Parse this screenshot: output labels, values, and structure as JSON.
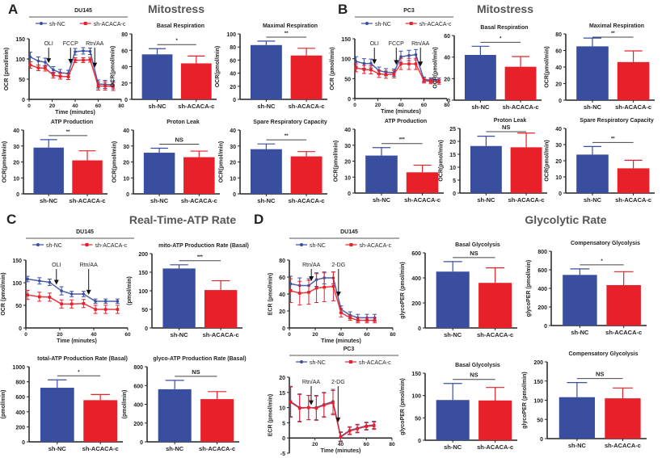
{
  "figure": {
    "panel_letters": [
      "A",
      "B",
      "C",
      "D"
    ],
    "section_titles": [
      "Mitostress",
      "Mitostress",
      "Real-Time-ATP Rate",
      "Glycolytic Rate"
    ]
  },
  "colors": {
    "sh-NC": "#3a4ea0",
    "sh-ACACA-c": "#e8202a",
    "axis": "#222222"
  },
  "chart_data": [
    {
      "type": "line",
      "title": "DU145",
      "xlabel": "Time (minutes)",
      "ylabel": "OCR (pmol/min)",
      "xlim": [
        0,
        80
      ],
      "ylim": [
        0,
        150
      ],
      "xticks": [
        0,
        20,
        40,
        60,
        80
      ],
      "yticks": [
        0,
        50,
        100,
        150
      ],
      "x": [
        1,
        8,
        14,
        21,
        27,
        34,
        40,
        47,
        53,
        60,
        66,
        73
      ],
      "series": [
        {
          "name": "sh-NC",
          "values": [
            105,
            95,
            92,
            73,
            66,
            64,
            118,
            120,
            119,
            38,
            37,
            36
          ],
          "errors": [
            12,
            10,
            10,
            8,
            8,
            8,
            8,
            8,
            8,
            10,
            10,
            10
          ]
        },
        {
          "name": "sh-ACACA-c",
          "values": [
            85,
            78,
            77,
            60,
            57,
            56,
            97,
            97,
            98,
            33,
            33,
            32
          ],
          "errors": [
            8,
            7,
            7,
            7,
            7,
            7,
            6,
            6,
            6,
            10,
            10,
            10
          ]
        }
      ],
      "injections": [
        {
          "label": "OLI",
          "x": 17
        },
        {
          "label": "FCCP",
          "x": 36
        },
        {
          "label": "Rtn/AA",
          "x": 57
        }
      ]
    },
    {
      "type": "bar",
      "title": "Basal Respiration",
      "ylabel": "OCR(pmol/min)",
      "categories": [
        "sh-NC",
        "sh-ACACA-c"
      ],
      "values": [
        55,
        44
      ],
      "errors": [
        7,
        9
      ],
      "ylim": [
        0,
        80
      ],
      "yticks": [
        0,
        20,
        40,
        60,
        80
      ],
      "significance": "*"
    },
    {
      "type": "bar",
      "title": "Maximal Respiration",
      "ylabel": "OCR(pmol/min)",
      "categories": [
        "sh-NC",
        "sh-ACACA-c"
      ],
      "values": [
        83,
        67
      ],
      "errors": [
        6,
        11
      ],
      "ylim": [
        0,
        100
      ],
      "yticks": [
        0,
        20,
        40,
        60,
        80,
        100
      ],
      "significance": "**"
    },
    {
      "type": "bar",
      "title": "ATP Production",
      "ylabel": "OCR(pmol/min)",
      "categories": [
        "sh-NC",
        "sh-ACACA-c"
      ],
      "values": [
        29,
        21
      ],
      "errors": [
        5,
        6
      ],
      "ylim": [
        0,
        40
      ],
      "yticks": [
        0,
        10,
        20,
        30,
        40
      ],
      "significance": "**"
    },
    {
      "type": "bar",
      "title": "Proton Leak",
      "ylabel": "OCR(pmol/min)",
      "categories": [
        "sh-NC",
        "sh-ACACA-c"
      ],
      "values": [
        25.8,
        23
      ],
      "errors": [
        2.8,
        3.8
      ],
      "ylim": [
        0,
        40
      ],
      "yticks": [
        0,
        10,
        20,
        30,
        40
      ],
      "significance": "NS"
    },
    {
      "type": "bar",
      "title": "Spare Respiratory Capacity",
      "ylabel": "OCR(pmol/min)",
      "categories": [
        "sh-NC",
        "sh-ACACA-c"
      ],
      "values": [
        28,
        23.5
      ],
      "errors": [
        3.3,
        3
      ],
      "ylim": [
        0,
        40
      ],
      "yticks": [
        0,
        10,
        20,
        30,
        40
      ],
      "significance": "**"
    },
    {
      "type": "line",
      "title": "PC3",
      "xlabel": "Time (minutes)",
      "ylabel": "OCR (pmol/min)",
      "xlim": [
        0,
        80
      ],
      "ylim": [
        0,
        150
      ],
      "xticks": [
        0,
        20,
        40,
        60,
        80
      ],
      "yticks": [
        0,
        50,
        100,
        150
      ],
      "x": [
        1,
        8,
        14,
        21,
        27,
        34,
        40,
        47,
        53,
        60,
        66,
        73
      ],
      "series": [
        {
          "name": "sh-NC",
          "values": [
            93,
            88,
            88,
            70,
            66,
            65,
            105,
            108,
            110,
            48,
            46,
            46
          ],
          "errors": [
            12,
            12,
            11,
            9,
            9,
            9,
            14,
            13,
            13,
            6,
            6,
            6
          ]
        },
        {
          "name": "sh-ACACA-c",
          "values": [
            77,
            73,
            72,
            62,
            60,
            61,
            87,
            87,
            87,
            45,
            43,
            42
          ],
          "errors": [
            10,
            10,
            10,
            9,
            9,
            9,
            14,
            14,
            14,
            6,
            6,
            6
          ]
        }
      ],
      "injections": [
        {
          "label": "OLI",
          "x": 17
        },
        {
          "label": "FCCP",
          "x": 36
        },
        {
          "label": "Rtn/AA",
          "x": 57
        }
      ]
    },
    {
      "type": "bar",
      "title": "Basal Respiration",
      "ylabel": "OCR(pmol/min)",
      "categories": [
        "sh-NC",
        "sh-ACACA-c"
      ],
      "values": [
        42,
        31
      ],
      "errors": [
        8,
        9.5
      ],
      "ylim": [
        0,
        60
      ],
      "yticks": [
        0,
        20,
        40,
        60
      ],
      "significance": "*"
    },
    {
      "type": "bar",
      "title": "Maximal Respiration",
      "ylabel": "OCR(pmol/min)",
      "categories": [
        "sh-NC",
        "sh-ACACA-c"
      ],
      "values": [
        65,
        46
      ],
      "errors": [
        10,
        13.5
      ],
      "ylim": [
        0,
        80
      ],
      "yticks": [
        0,
        20,
        40,
        60,
        80
      ],
      "significance": "**"
    },
    {
      "type": "bar",
      "title": "ATP Production",
      "ylabel": "OCR(pmol/min)",
      "categories": [
        "sh-NC",
        "sh-ACACA-c"
      ],
      "values": [
        23.5,
        13
      ],
      "errors": [
        5,
        4.5
      ],
      "ylim": [
        0,
        40
      ],
      "yticks": [
        0,
        10,
        20,
        30,
        40
      ],
      "significance": "***"
    },
    {
      "type": "bar",
      "title": "Proton Leak",
      "ylabel": "OCR(pmol/min)",
      "categories": [
        "sh-NC",
        "sh-ACACA-c"
      ],
      "values": [
        18.2,
        17.7
      ],
      "errors": [
        3.8,
        5.5
      ],
      "ylim": [
        0,
        25
      ],
      "yticks": [
        0,
        5,
        10,
        15,
        20,
        25
      ],
      "significance": "NS"
    },
    {
      "type": "bar",
      "title": "Spare Respiratory Capacity",
      "ylabel": "OCR(pmol/min)",
      "categories": [
        "sh-NC",
        "sh-ACACA-c"
      ],
      "values": [
        23.8,
        15.3
      ],
      "errors": [
        5,
        5
      ],
      "ylim": [
        0,
        40
      ],
      "yticks": [
        0,
        10,
        20,
        30,
        40
      ],
      "significance": "**"
    },
    {
      "type": "line",
      "title": "DU145",
      "xlabel": "Time (minutes)",
      "ylabel": "OCR (pmol/min)",
      "xlim": [
        0,
        60
      ],
      "ylim": [
        0,
        150
      ],
      "xticks": [
        0,
        20,
        40,
        60
      ],
      "yticks": [
        0,
        50,
        100,
        150
      ],
      "x": [
        1,
        8,
        14,
        21,
        27,
        34,
        41,
        47,
        54
      ],
      "series": [
        {
          "name": "sh-NC",
          "values": [
            108,
            104,
            101,
            82,
            75,
            75,
            59,
            59,
            59
          ],
          "errors": [
            6,
            7,
            7,
            9,
            6,
            6,
            5,
            5,
            5
          ]
        },
        {
          "name": "sh-ACACA-c",
          "values": [
            73,
            69,
            68,
            53,
            53,
            54,
            41,
            41,
            41
          ],
          "errors": [
            10,
            10,
            9,
            9,
            9,
            9,
            9,
            9,
            9
          ]
        }
      ],
      "injections": [
        {
          "label": "OLI",
          "x": 18
        },
        {
          "label": "Rtn/AA",
          "x": 37
        }
      ]
    },
    {
      "type": "bar",
      "title": "mito-ATP Production Rate (Basal)",
      "ylabel": "(pmol/min)",
      "categories": [
        "sh-NC",
        "sh-ACACA-c"
      ],
      "values": [
        160,
        102
      ],
      "errors": [
        10,
        25
      ],
      "ylim": [
        0,
        200
      ],
      "yticks": [
        0,
        50,
        100,
        150,
        200
      ],
      "significance": "***"
    },
    {
      "type": "bar",
      "title": "total-ATP Production Rate (Basal)",
      "ylabel": "(pmol/min)",
      "categories": [
        "sh-NC",
        "sh-ACACA-c"
      ],
      "values": [
        720,
        555
      ],
      "errors": [
        105,
        75
      ],
      "ylim": [
        0,
        1000
      ],
      "yticks": [
        0,
        200,
        400,
        600,
        800,
        1000
      ],
      "significance": "*"
    },
    {
      "type": "bar",
      "title": "glyco-ATP Production Rate (Basal)",
      "ylabel": "(pmol/min)",
      "categories": [
        "sh-NC",
        "sh-ACACA-c"
      ],
      "values": [
        560,
        455
      ],
      "errors": [
        95,
        80
      ],
      "ylim": [
        0,
        800
      ],
      "yticks": [
        0,
        200,
        400,
        600,
        800
      ],
      "significance": "NS"
    },
    {
      "type": "line",
      "title": "DU145",
      "xlabel": "Time (minutes)",
      "ylabel": "ECR (pmol/min)",
      "xlim": [
        0,
        80
      ],
      "ylim": [
        0,
        80
      ],
      "xticks": [
        0,
        20,
        40,
        60,
        80
      ],
      "yticks": [
        0,
        20,
        40,
        60,
        80
      ],
      "x": [
        1,
        8,
        15,
        21,
        27,
        34,
        40,
        47,
        53,
        60,
        66
      ],
      "series": [
        {
          "name": "sh-NC",
          "values": [
            52,
            50,
            50,
            57,
            59,
            59,
            22,
            15,
            12,
            12,
            12
          ],
          "errors": [
            9,
            9,
            8,
            8,
            7,
            7,
            4,
            4,
            4,
            4,
            4
          ]
        },
        {
          "name": "sh-ACACA-c",
          "values": [
            44,
            41,
            42,
            47,
            48,
            49,
            18,
            12,
            9,
            9,
            9
          ],
          "errors": [
            14,
            14,
            14,
            17,
            17,
            17,
            5,
            3,
            3,
            3,
            3
          ]
        }
      ],
      "injections": [
        {
          "label": "Rtn/AA",
          "x": 17
        },
        {
          "label": "2-DG",
          "x": 38
        }
      ]
    },
    {
      "type": "bar",
      "title": "Basal Glycolysis",
      "ylabel": "glycoPER (pmol/min)",
      "categories": [
        "sh-NC",
        "sh-ACACA-c"
      ],
      "values": [
        450,
        360
      ],
      "errors": [
        80,
        120
      ],
      "ylim": [
        0,
        600
      ],
      "yticks": [
        0,
        200,
        400,
        600
      ],
      "significance": "NS"
    },
    {
      "type": "bar",
      "title": "Compensatory Glycolysis",
      "ylabel": "glycoPER (pmol/min)",
      "categories": [
        "sh-NC",
        "sh-ACACA-c"
      ],
      "values": [
        545,
        435
      ],
      "errors": [
        65,
        145
      ],
      "ylim": [
        0,
        800
      ],
      "yticks": [
        0,
        200,
        400,
        600,
        800
      ],
      "significance": "*"
    },
    {
      "type": "line",
      "title": "PC3",
      "xlabel": "Time (minutes)",
      "ylabel": "ECR (pmol/min)",
      "xlim": [
        0,
        80
      ],
      "ylim": [
        -5,
        20
      ],
      "xticks": [
        20,
        40,
        60,
        80
      ],
      "yticks": [
        -5,
        0,
        5,
        10,
        15,
        20
      ],
      "x": [
        1,
        8,
        15,
        21,
        27,
        34,
        40,
        47,
        53,
        60,
        66
      ],
      "series": [
        {
          "name": "sh-NC",
          "values": [
            12,
            10,
            10,
            10,
            11,
            12,
            0.5,
            2.5,
            3.2,
            4,
            4.3
          ],
          "errors": [
            5,
            4.5,
            4,
            4,
            4,
            4,
            1.5,
            1.2,
            1.3,
            1.2,
            1.2
          ]
        },
        {
          "name": "sh-ACACA-c",
          "values": [
            11.8,
            9.8,
            10,
            9.8,
            10.8,
            11.6,
            0.3,
            2.3,
            3,
            3.8,
            4
          ],
          "errors": [
            5,
            4.5,
            4,
            4,
            4,
            4,
            1.5,
            1.2,
            1.3,
            1.2,
            1.2
          ]
        }
      ],
      "injections": [
        {
          "label": "Rtn/AA",
          "x": 17
        },
        {
          "label": "2-DG",
          "x": 38
        }
      ]
    },
    {
      "type": "bar",
      "title": "Basal Glycolysis",
      "ylabel": "glycoPER (pmol/min)",
      "categories": [
        "sh-NC",
        "sh-ACACA-c"
      ],
      "values": [
        90,
        89
      ],
      "errors": [
        37,
        29
      ],
      "ylim": [
        0,
        150
      ],
      "yticks": [
        0,
        50,
        100,
        150
      ],
      "significance": "NS"
    },
    {
      "type": "bar",
      "title": "Compensatory Glycolysis",
      "ylabel": "glycoPER (pmol/min)",
      "categories": [
        "sh-NC",
        "sh-ACACA-c"
      ],
      "values": [
        108,
        105
      ],
      "errors": [
        38,
        27
      ],
      "ylim": [
        0,
        200
      ],
      "yticks": [
        0,
        50,
        100,
        150,
        200
      ],
      "significance": "NS"
    }
  ]
}
